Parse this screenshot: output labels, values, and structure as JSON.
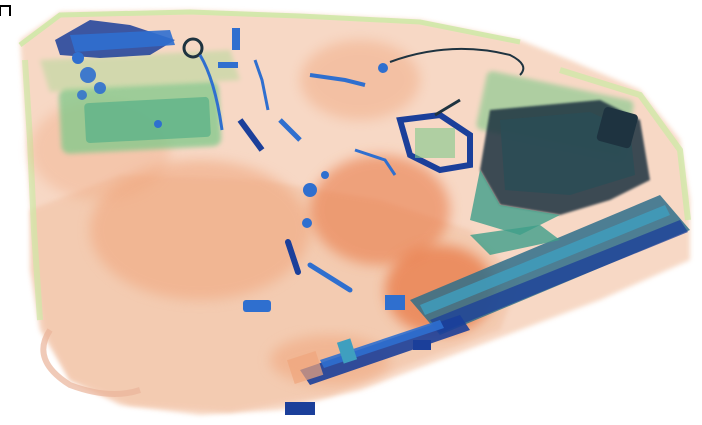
{
  "image": {
    "kind": "x-ray-baggage-scan",
    "background_color": "#ffffff",
    "palette": {
      "organic_light": "#f6d2bb",
      "organic": "#f0a57c",
      "organic_dense": "#e8753f",
      "mixed_light": "#cfe8a7",
      "mixed": "#7fc98a",
      "mixed_dense": "#3f9f8a",
      "inorganic": "#2f6fcf",
      "inorganic_dense": "#1b3f9a",
      "dark_metal": "#1e3340"
    }
  }
}
